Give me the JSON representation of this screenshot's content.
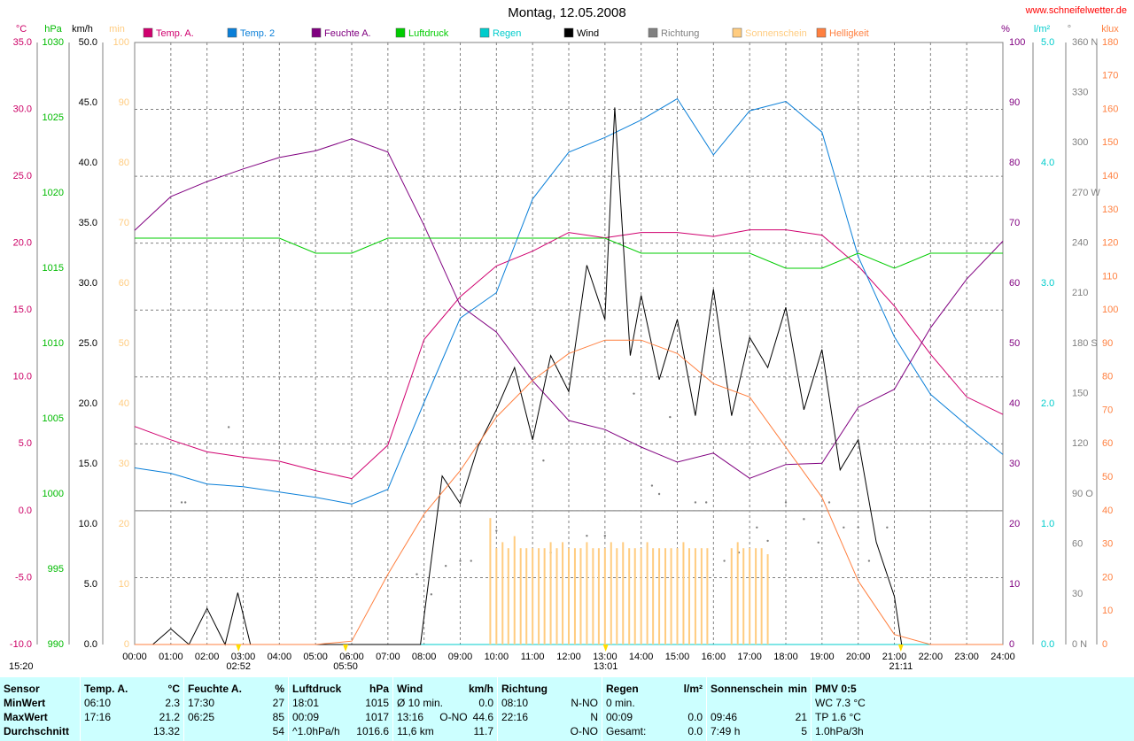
{
  "chart_data": {
    "type": "line",
    "title": "Montag, 12.05.2008",
    "source": "www.schneifelwetter.de",
    "xlim": [
      0,
      24
    ],
    "xticks": [
      {
        "value": 0,
        "label": "00:00"
      },
      {
        "value": 1,
        "label": "01:00"
      },
      {
        "value": 2,
        "label": "02:00"
      },
      {
        "value": 3,
        "label": "03:00"
      },
      {
        "value": 4,
        "label": "04:00"
      },
      {
        "value": 5,
        "label": "05:00"
      },
      {
        "value": 6,
        "label": "06:00"
      },
      {
        "value": 7,
        "label": "07:00"
      },
      {
        "value": 8,
        "label": "08:00"
      },
      {
        "value": 9,
        "label": "09:00"
      },
      {
        "value": 10,
        "label": "10:00"
      },
      {
        "value": 11,
        "label": "11:00"
      },
      {
        "value": 12,
        "label": "12:00"
      },
      {
        "value": 13,
        "label": "13:00"
      },
      {
        "value": 14,
        "label": "14:00"
      },
      {
        "value": 15,
        "label": "15:00"
      },
      {
        "value": 16,
        "label": "16:00"
      },
      {
        "value": 17,
        "label": "17:00"
      },
      {
        "value": 18,
        "label": "18:00"
      },
      {
        "value": 19,
        "label": "19:00"
      },
      {
        "value": 20,
        "label": "20:00"
      },
      {
        "value": 21,
        "label": "21:00"
      },
      {
        "value": 22,
        "label": "22:00"
      },
      {
        "value": 23,
        "label": "23:00"
      },
      {
        "value": 24,
        "label": "24:00"
      }
    ],
    "x": [
      0,
      1,
      2,
      3,
      4,
      5,
      6,
      7,
      8,
      9,
      10,
      11,
      12,
      13,
      14,
      15,
      16,
      17,
      18,
      19,
      20,
      21,
      22,
      23,
      24
    ],
    "axes": [
      {
        "id": "temp",
        "label": "°C",
        "color": "#cc0066",
        "lim": [
          -10,
          35
        ],
        "grid": true,
        "ticks": [
          {
            "value": -10,
            "label": "-10.0"
          },
          {
            "value": -5,
            "label": "-5.0"
          },
          {
            "value": 0,
            "label": "0.0"
          },
          {
            "value": 5,
            "label": "5.0"
          },
          {
            "value": 10,
            "label": "10.0"
          },
          {
            "value": 15,
            "label": "15.0"
          },
          {
            "value": 20,
            "label": "20.0"
          },
          {
            "value": 25,
            "label": "25.0"
          },
          {
            "value": 30,
            "label": "30.0"
          },
          {
            "value": 35,
            "label": "35.0"
          }
        ]
      },
      {
        "id": "press",
        "label": "hPa",
        "color": "#00bb00",
        "lim": [
          990,
          1030
        ],
        "ticks": [
          990,
          995,
          1000,
          1005,
          1010,
          1015,
          1020,
          1025,
          1030
        ]
      },
      {
        "id": "wind",
        "label": "km/h",
        "color": "#000000",
        "lim": [
          0,
          50
        ],
        "ticks": [
          {
            "value": 0,
            "label": "0.0"
          },
          {
            "value": 5,
            "label": "5.0"
          },
          {
            "value": 10,
            "label": "10.0"
          },
          {
            "value": 15,
            "label": "15.0"
          },
          {
            "value": 20,
            "label": "20.0"
          },
          {
            "value": 25,
            "label": "25.0"
          },
          {
            "value": 30,
            "label": "30.0"
          },
          {
            "value": 35,
            "label": "35.0"
          },
          {
            "value": 40,
            "label": "40.0"
          },
          {
            "value": 45,
            "label": "45.0"
          },
          {
            "value": 50,
            "label": "50.0"
          }
        ]
      },
      {
        "id": "sun",
        "label": "min",
        "color": "#ffcc80",
        "lim": [
          0,
          100
        ],
        "ticks": [
          0,
          10,
          20,
          30,
          40,
          50,
          60,
          70,
          80,
          90,
          100
        ]
      },
      {
        "id": "hum",
        "label": "%",
        "color": "#800080",
        "lim": [
          0,
          100
        ],
        "ticks": [
          0,
          10,
          20,
          30,
          40,
          50,
          60,
          70,
          80,
          90,
          100
        ]
      },
      {
        "id": "rain",
        "label": "l/m²",
        "color": "#00cccc",
        "lim": [
          0,
          5
        ],
        "ticks": [
          {
            "value": 0,
            "label": "0.0"
          },
          {
            "value": 1,
            "label": "1.0"
          },
          {
            "value": 2,
            "label": "2.0"
          },
          {
            "value": 3,
            "label": "3.0"
          },
          {
            "value": 4,
            "label": "4.0"
          },
          {
            "value": 5,
            "label": "5.0"
          }
        ]
      },
      {
        "id": "dir",
        "label": "°",
        "color": "#808080",
        "lim": [
          0,
          360
        ],
        "ticks": [
          {
            "value": 0,
            "label": "0 N"
          },
          30,
          60,
          {
            "value": 90,
            "label": "90 O"
          },
          120,
          150,
          {
            "value": 180,
            "label": "180 S"
          },
          210,
          240,
          {
            "value": 270,
            "label": "270 W"
          },
          300,
          330,
          {
            "value": 360,
            "label": "360 N"
          }
        ]
      },
      {
        "id": "lux",
        "label": "klux",
        "color": "#ff8040",
        "lim": [
          0,
          180
        ],
        "ticks": [
          0,
          10,
          20,
          30,
          40,
          50,
          60,
          70,
          80,
          90,
          100,
          110,
          120,
          130,
          140,
          150,
          160,
          170,
          180
        ]
      }
    ],
    "series": [
      {
        "name": "Temp. A.",
        "color": "#d0006f",
        "axis": "temp",
        "values": [
          6.3,
          5.3,
          4.4,
          4.0,
          3.7,
          3.0,
          2.4,
          4.9,
          12.8,
          16.0,
          18.3,
          19.4,
          20.8,
          20.4,
          20.8,
          20.8,
          20.5,
          21.0,
          21.0,
          20.6,
          18.3,
          15.3,
          11.7,
          8.5,
          7.2
        ]
      },
      {
        "name": "Temp. 2",
        "color": "#0a7fd8",
        "axis": "temp",
        "values": [
          3.2,
          2.8,
          2.0,
          1.8,
          1.4,
          1.0,
          0.5,
          1.6,
          8.1,
          14.4,
          16.3,
          23.3,
          26.8,
          27.9,
          29.2,
          30.8,
          26.6,
          29.9,
          30.6,
          28.3,
          19.0,
          13.0,
          8.7,
          6.4,
          4.2
        ]
      },
      {
        "name": "Feuchte A.",
        "color": "#800080",
        "axis": "hum",
        "values": [
          68.8,
          74.4,
          76.9,
          79,
          80.9,
          82,
          84,
          81.8,
          69.6,
          56.3,
          51.9,
          43.8,
          37.2,
          35.7,
          32.8,
          30.3,
          31.8,
          27.6,
          29.9,
          30.1,
          39.4,
          42.4,
          52.6,
          60.7,
          67
        ]
      },
      {
        "name": "Luftdruck",
        "color": "#00cc00",
        "axis": "press",
        "values": [
          1017,
          1017,
          1017,
          1017,
          1017,
          1016,
          1016,
          1017,
          1017,
          1017,
          1017,
          1017,
          1017,
          1017,
          1016,
          1016,
          1016,
          1016,
          1015,
          1015,
          1016,
          1015,
          1016,
          1016,
          1016
        ]
      },
      {
        "name": "Regen",
        "color": "#00cccc",
        "axis": "rain",
        "x": [
          0,
          24
        ],
        "values": [
          0,
          0
        ]
      },
      {
        "name": "Wind",
        "color": "#000000",
        "axis": "wind",
        "x": [
          0,
          0.5,
          1,
          1.5,
          2,
          2.5,
          2.85,
          3.2,
          7.9,
          8.5,
          9,
          9.5,
          10,
          10.5,
          11,
          11.5,
          12,
          12.5,
          13,
          13.27,
          13.7,
          14,
          14.5,
          15,
          15.5,
          16,
          16.5,
          17,
          17.5,
          18,
          18.5,
          19,
          19.5,
          20,
          20.5,
          21,
          21.2
        ],
        "values": [
          0,
          0,
          1.3,
          0,
          3,
          0,
          4.3,
          0,
          0,
          14,
          11.7,
          16.5,
          19.5,
          23,
          17,
          24,
          21,
          31.5,
          27,
          44.6,
          24,
          29,
          22,
          27,
          19,
          29.5,
          19,
          25.5,
          23,
          28,
          19.5,
          24.5,
          14.5,
          17,
          8.5,
          4,
          0
        ]
      },
      {
        "name": "Richtung",
        "color": "#808080",
        "axis": "dir",
        "kind": "dots",
        "x": [
          1.3,
          1.4,
          2.6,
          7.8,
          8.2,
          8.6,
          9,
          9.3,
          10,
          11.3,
          11.5,
          12.5,
          13,
          13.8,
          14.3,
          14.5,
          14.8,
          15.5,
          15.8,
          16.3,
          16.7,
          17.2,
          17.5,
          18,
          18.5,
          18.9,
          19.2,
          19.6,
          20,
          20.3,
          20.8
        ],
        "values": [
          85,
          85,
          130,
          42,
          30,
          47,
          50,
          50,
          68,
          110,
          55,
          65,
          65,
          150,
          95,
          90,
          136,
          85,
          85,
          50,
          55,
          70,
          62,
          85,
          75,
          61,
          85,
          70,
          70,
          50,
          70
        ]
      },
      {
        "name": "Sonnenschein",
        "color": "#ffcc80",
        "axis": "sun",
        "kind": "bars",
        "x": [
          9.83,
          10,
          10.17,
          10.33,
          10.5,
          10.67,
          10.83,
          11,
          11.17,
          11.33,
          11.5,
          11.67,
          11.83,
          12,
          12.17,
          12.33,
          12.5,
          12.67,
          12.83,
          13,
          13.17,
          13.33,
          13.5,
          13.67,
          13.83,
          14,
          14.17,
          14.33,
          14.5,
          14.67,
          14.83,
          15,
          15.17,
          15.33,
          15.5,
          15.67,
          15.83,
          16.5,
          16.67,
          16.83,
          17,
          17.17,
          17.33,
          17.5
        ],
        "values": [
          21,
          16,
          17,
          16,
          18,
          16,
          16,
          16,
          16,
          16,
          17,
          16,
          17,
          16,
          16,
          16,
          17,
          16,
          16,
          16,
          17,
          16,
          17,
          16,
          16,
          16,
          17,
          16,
          16,
          16,
          16,
          16,
          17,
          16,
          16,
          16,
          16,
          16,
          17,
          16,
          16,
          16,
          16,
          15
        ]
      },
      {
        "name": "Helligkeit",
        "color": "#ff8040",
        "axis": "lux",
        "values": [
          0,
          0,
          0,
          0,
          0,
          0,
          1,
          21,
          39,
          52,
          68,
          79,
          87,
          91,
          91,
          87,
          78,
          74,
          59,
          44,
          19,
          3,
          0,
          0,
          0
        ]
      }
    ],
    "annotations": [
      {
        "label": "15:20"
      },
      {
        "label": "02:52",
        "x": 2.87
      },
      {
        "label": "05:50",
        "x": 5.83
      },
      {
        "label": "13:01",
        "x": 13.02
      },
      {
        "label": "21:11",
        "x": 21.18
      }
    ]
  },
  "table": {
    "columns": [
      {
        "header": {
          "left": "Sensor"
        },
        "rows": [
          {
            "left": "MinWert"
          },
          {
            "left": "MaxWert"
          },
          {
            "left": "Durchschnitt"
          }
        ]
      },
      {
        "header": {
          "left": "Temp. A.",
          "right": "°C"
        },
        "rows": [
          {
            "left": "06:10",
            "right": "2.3"
          },
          {
            "left": "17:16",
            "right": "21.2"
          },
          {
            "right": "13.32"
          }
        ]
      },
      {
        "header": {
          "left": "Feuchte A.",
          "right": "%"
        },
        "rows": [
          {
            "left": "17:30",
            "right": "27"
          },
          {
            "left": "06:25",
            "right": "85"
          },
          {
            "right": "54"
          }
        ]
      },
      {
        "header": {
          "left": "Luftdruck",
          "right": "hPa"
        },
        "rows": [
          {
            "left": "18:01",
            "right": "1015"
          },
          {
            "left": "00:09",
            "right": "1017"
          },
          {
            "left": "^1.0hPa/h",
            "right": "1016.6"
          }
        ]
      },
      {
        "header": {
          "left": "Wind",
          "right": "km/h"
        },
        "rows": [
          {
            "left": "Ø 10 min.",
            "right": "0.0"
          },
          {
            "left": "13:16",
            "mid": "O-NO",
            "right": "44.6"
          },
          {
            "left": "11,6 km",
            "right": "11.7"
          }
        ]
      },
      {
        "header": {
          "left": "Richtung"
        },
        "rows": [
          {
            "left": "08:10",
            "right": "N-NO"
          },
          {
            "left": "22:16",
            "right": "N"
          },
          {
            "right": "O-NO"
          }
        ]
      },
      {
        "header": {
          "left": "Regen",
          "right": "l/m²"
        },
        "rows": [
          {
            "left": "0 min."
          },
          {
            "left": "00:09",
            "right": "0.0"
          },
          {
            "left": "Gesamt:",
            "right": "0.0"
          }
        ]
      },
      {
        "header": {
          "left": "Sonnenschein",
          "right": "min"
        },
        "rows": [
          {},
          {
            "left": "09:46",
            "right": "21"
          },
          {
            "left": "7:49 h",
            "right": "5"
          }
        ]
      },
      {
        "header": {
          "left": "PMV 0:5"
        },
        "rows": [
          {
            "left": "WC 7.3 °C"
          },
          {
            "left": "TP 1.6 °C"
          },
          {
            "left": "1.0hPa/3h"
          }
        ]
      }
    ]
  }
}
